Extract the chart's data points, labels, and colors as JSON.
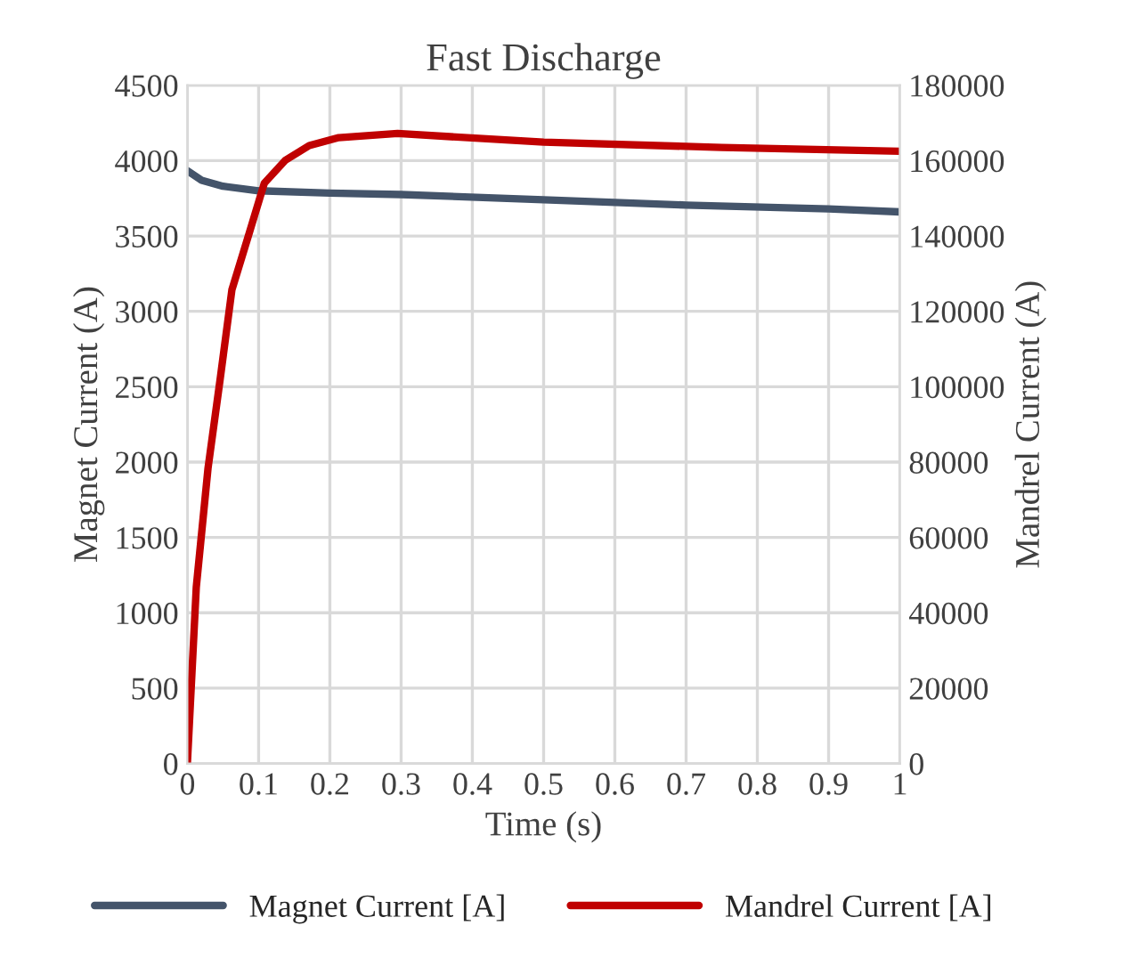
{
  "chart_data": {
    "type": "line",
    "title": "Fast Discharge",
    "xlabel": "Time (s)",
    "ylabel": "Magnet Current (A)",
    "y2label": "Mandrel Current (A)",
    "series": [
      {
        "name": "Magnet Current [A]",
        "color": "#44546a",
        "x": [
          0,
          0.02,
          0.05,
          0.1,
          0.2,
          0.3,
          0.5,
          0.7,
          0.9,
          1.0
        ],
        "values": [
          3933,
          3870,
          3830,
          3800,
          3785,
          3775,
          3740,
          3705,
          3680,
          3660
        ]
      },
      {
        "name": "Mandrel Current [A]",
        "color": "#c00000",
        "axis": "y2",
        "x": [
          0,
          0.0125,
          0.029,
          0.046,
          0.0625,
          0.0875,
          0.108,
          0.1375,
          0.171,
          0.2125,
          0.295,
          0.5,
          0.75,
          1.0
        ],
        "values": [
          0,
          46800,
          78400,
          102000,
          125700,
          141200,
          154000,
          160100,
          164000,
          166100,
          167200,
          164900,
          163500,
          162500
        ]
      }
    ],
    "xlim": [
      0,
      1
    ],
    "xticks": [
      0,
      0.1,
      0.2,
      0.3,
      0.4,
      0.5,
      0.6,
      0.7,
      0.8,
      0.9,
      1
    ],
    "ylim": [
      0,
      4500
    ],
    "yticks": [
      0,
      500,
      1000,
      1500,
      2000,
      2500,
      3000,
      3500,
      4000,
      4500
    ],
    "y2lim": [
      0,
      180000
    ],
    "y2ticks": [
      0,
      20000,
      40000,
      60000,
      80000,
      100000,
      120000,
      140000,
      160000,
      180000
    ],
    "grid": true,
    "legend": "bottom"
  }
}
